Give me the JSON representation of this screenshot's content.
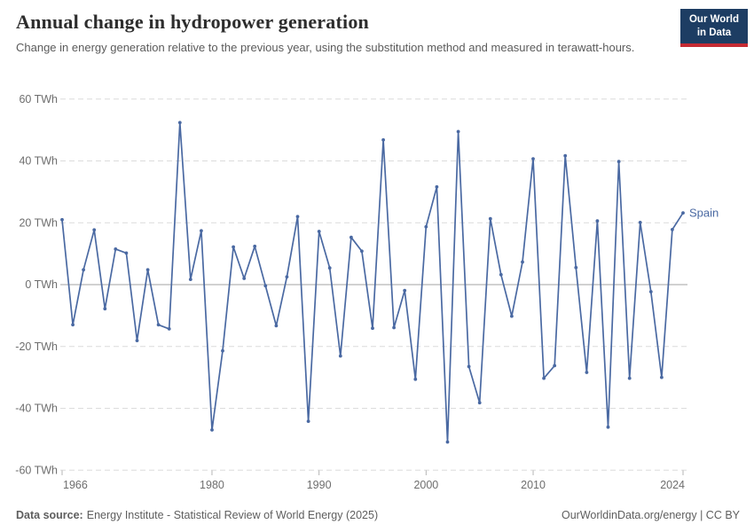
{
  "header": {
    "title": "Annual change in hydropower generation",
    "subtitle": "Change in energy generation relative to the previous year, using the substitution method and measured in terawatt-hours.",
    "logo": {
      "line1": "Our World",
      "line2": "in Data"
    }
  },
  "chart_data": {
    "type": "line",
    "title": "Annual change in hydropower generation",
    "unit": "TWh",
    "xlabel": "",
    "ylabel": "",
    "x": [
      1966,
      1967,
      1968,
      1969,
      1970,
      1971,
      1972,
      1973,
      1974,
      1975,
      1976,
      1977,
      1978,
      1979,
      1980,
      1981,
      1982,
      1983,
      1984,
      1985,
      1986,
      1987,
      1988,
      1989,
      1990,
      1991,
      1992,
      1993,
      1994,
      1995,
      1996,
      1997,
      1998,
      1999,
      2000,
      2001,
      2002,
      2003,
      2004,
      2005,
      2006,
      2007,
      2008,
      2009,
      2010,
      2011,
      2012,
      2013,
      2014,
      2015,
      2016,
      2017,
      2018,
      2019,
      2020,
      2021,
      2022,
      2023,
      2024
    ],
    "series": [
      {
        "name": "Spain",
        "color": "#4a69a2",
        "values": [
          21,
          -13,
          4.8,
          17.7,
          -7.8,
          11.5,
          10.2,
          -18.1,
          4.8,
          -13,
          -14.3,
          52.4,
          1.7,
          17.4,
          -47,
          -21.4,
          12.2,
          2,
          12.4,
          -0.4,
          -13.3,
          2.5,
          22,
          -44.2,
          17.2,
          5.4,
          -23.1,
          15.3,
          10.8,
          -14.1,
          46.8,
          -13.9,
          -1.9,
          -30.6,
          18.7,
          31.6,
          -50.9,
          49.5,
          -26.5,
          -38.2,
          21.3,
          3.2,
          -10.2,
          7.3,
          40.7,
          -30.3,
          -26.2,
          41.7,
          5.5,
          -28.4,
          20.6,
          -46.1,
          39.8,
          -30.3,
          20.1,
          -2.3,
          -30,
          17.8,
          23.2
        ]
      }
    ],
    "y_ticks": [
      60,
      40,
      20,
      0,
      -20,
      -40,
      -60
    ],
    "y_tick_suffix": " TWh",
    "x_ticks": [
      1966,
      1980,
      1990,
      2000,
      2010,
      2024
    ],
    "ylim": [
      -60,
      60
    ],
    "xlim": [
      1966,
      2024
    ],
    "grid": "horizontal-dashed",
    "legend_position": "end-of-line-label",
    "markers": true
  },
  "footer": {
    "source_label": "Data source:",
    "source_text": "Energy Institute - Statistical Review of World Energy (2025)",
    "right_text": "OurWorldinData.org/energy | CC BY"
  },
  "colors": {
    "line": "#4a69a2",
    "gridline": "#dcdcdc",
    "zero_line": "#a3a3a3",
    "tick": "#b5b5b5",
    "axis_text": "#6e6e6e",
    "title": "#2d2d2d",
    "subtitle": "#5b5b5b",
    "footer_text": "#5e5e5e",
    "logo_bg": "#1d3d63",
    "logo_stripe": "#c52b33"
  }
}
